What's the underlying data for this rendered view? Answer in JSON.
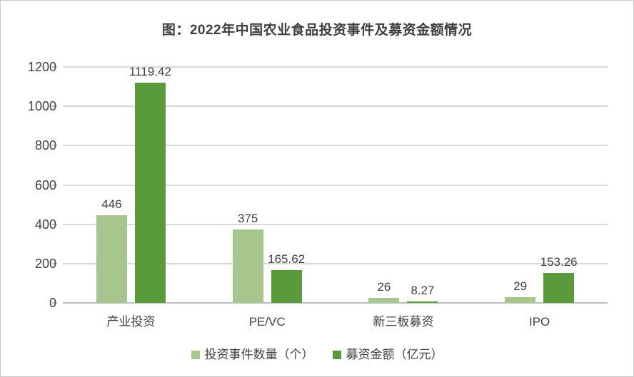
{
  "title": "图：2022年中国农业食品投资事件及募资金额情况",
  "colors": {
    "series_events": "#a6c68e",
    "series_amount": "#599a3c",
    "gridline": "#d9d9d9",
    "axis_line": "#bfbfbf",
    "text": "#404040"
  },
  "chart_data": {
    "type": "bar",
    "title": "图：2022年中国农业食品投资事件及募资金额情况",
    "categories": [
      "产业投资",
      "PE/VC",
      "新三板募资",
      "IPO"
    ],
    "series": [
      {
        "name": "投资事件数量（个）",
        "values": [
          446,
          375,
          26,
          29
        ],
        "color": "#a6c68e"
      },
      {
        "name": "募资金额（亿元）",
        "values": [
          1119.42,
          165.62,
          8.27,
          153.26
        ],
        "color": "#599a3c"
      }
    ],
    "xlabel": "",
    "ylabel": "",
    "ylim": [
      0,
      1200
    ],
    "yticks": [
      0,
      200,
      400,
      600,
      800,
      1000,
      1200
    ],
    "grid": true,
    "legend_position": "bottom",
    "data_labels": true
  }
}
